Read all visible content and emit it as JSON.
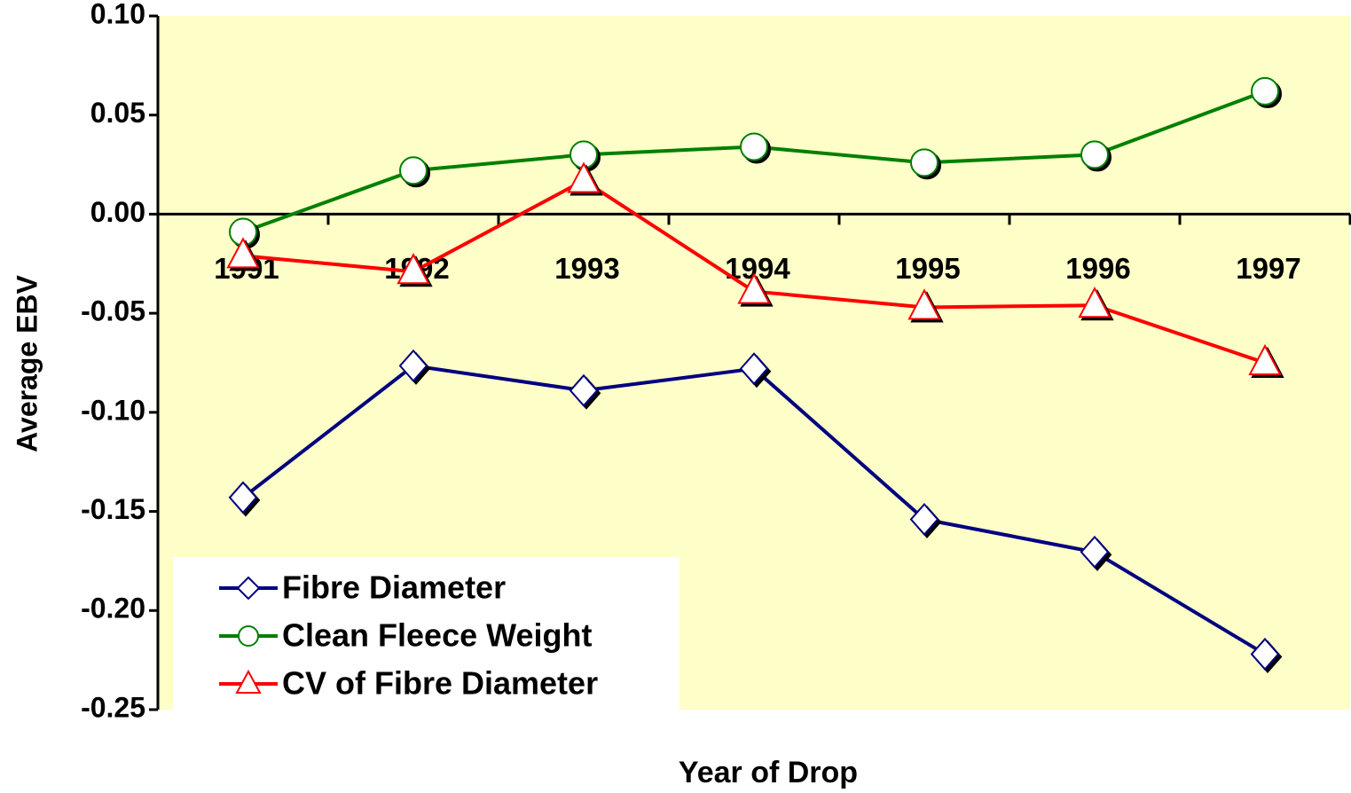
{
  "chart_data": {
    "type": "line",
    "xlabel": "Year of Drop",
    "ylabel": "Average EBV",
    "categories": [
      "1991",
      "1992",
      "1993",
      "1994",
      "1995",
      "1996",
      "1997"
    ],
    "series": [
      {
        "name": "Fibre Diameter",
        "color": "#000080",
        "marker": "diamond",
        "values": [
          -0.143,
          -0.0765,
          -0.089,
          -0.078,
          -0.154,
          -0.1705,
          -0.222
        ]
      },
      {
        "name": "Clean Fleece Weight",
        "color": "#008000",
        "marker": "circle",
        "values": [
          -0.009,
          0.022,
          0.03,
          0.034,
          0.026,
          0.03,
          0.062
        ]
      },
      {
        "name": "CV of Fibre Diameter",
        "color": "#ff0000",
        "marker": "triangle",
        "values": [
          -0.021,
          -0.029,
          0.017,
          -0.039,
          -0.047,
          -0.046,
          -0.075
        ]
      }
    ],
    "ylim": [
      -0.25,
      0.1
    ],
    "yticks": [
      {
        "value": -0.25,
        "label": "-0.25"
      },
      {
        "value": -0.2,
        "label": "-0.20"
      },
      -0.15,
      {
        "value": -0.1,
        "label": "-0.10"
      },
      -0.05,
      {
        "value": 0,
        "label": "0.00"
      },
      0.05,
      {
        "value": 0.1,
        "label": "0.10"
      }
    ],
    "legend": "lower left",
    "background": "#fefec8"
  }
}
